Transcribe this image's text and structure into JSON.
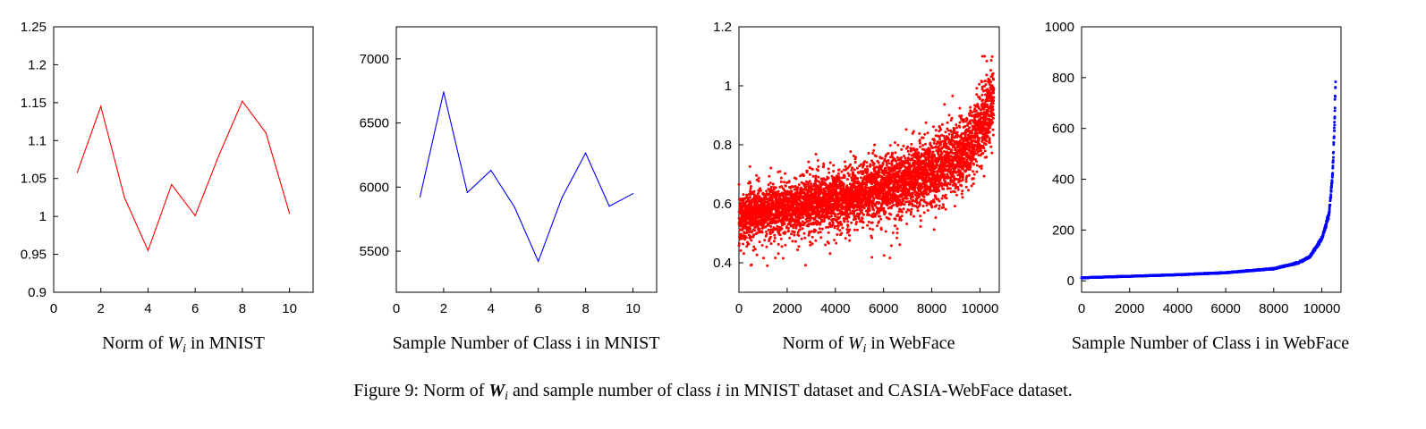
{
  "figure_caption": {
    "prefix": "Figure 9: Norm of ",
    "sym_W": "W",
    "sym_i": "i",
    "middle": " and sample number of class ",
    "sym_i2": "i",
    "suffix": " in MNIST dataset and CASIA-WebFace dataset."
  },
  "chart_data": [
    {
      "type": "line",
      "caption_prefix": "Norm of ",
      "caption_sym_W": "W",
      "caption_sym_i": "i",
      "caption_suffix": " in MNIST",
      "line_color": "#ff0000",
      "x": [
        1,
        2,
        3,
        4,
        5,
        6,
        7,
        8,
        9,
        10
      ],
      "values": [
        1.058,
        1.145,
        1.025,
        0.955,
        1.042,
        1.001,
        1.08,
        1.152,
        1.11,
        1.004
      ],
      "xlim": [
        0,
        11
      ],
      "ylim": [
        0.9,
        1.25
      ],
      "x_ticks": [
        0,
        2,
        4,
        6,
        8,
        10
      ],
      "x_tick_labels": [
        "0",
        "2",
        "4",
        "6",
        "8",
        "10"
      ],
      "y_ticks": [
        0.9,
        0.95,
        1.0,
        1.05,
        1.1,
        1.15,
        1.2,
        1.25
      ],
      "y_tick_labels": [
        "0.9",
        "0.95",
        "1",
        "1.05",
        "1.1",
        "1.15",
        "1.2",
        "1.25"
      ]
    },
    {
      "type": "line",
      "caption": "Sample Number of Class i in MNIST",
      "line_color": "#0000ff",
      "x": [
        1,
        2,
        3,
        4,
        5,
        6,
        7,
        8,
        9,
        10
      ],
      "values": [
        5923,
        6742,
        5958,
        6131,
        5842,
        5421,
        5918,
        6265,
        5851,
        5949
      ],
      "xlim": [
        0,
        11
      ],
      "ylim": [
        5180,
        7250
      ],
      "x_ticks": [
        0,
        2,
        4,
        6,
        8,
        10
      ],
      "x_tick_labels": [
        "0",
        "2",
        "4",
        "6",
        "8",
        "10"
      ],
      "y_ticks": [
        5500,
        6000,
        6500,
        7000
      ],
      "y_tick_labels": [
        "5500",
        "6000",
        "6500",
        "7000"
      ]
    },
    {
      "type": "scatter",
      "caption_prefix": "Norm of ",
      "caption_sym_W": "W",
      "caption_sym_i": "i",
      "caption_suffix": " in WebFace",
      "point_color": "#ff0000",
      "n_classes": 10575,
      "trend": [
        [
          0,
          0.56
        ],
        [
          2000,
          0.585
        ],
        [
          4000,
          0.615
        ],
        [
          6000,
          0.65
        ],
        [
          8000,
          0.71
        ],
        [
          9500,
          0.79
        ],
        [
          10575,
          0.96
        ]
      ],
      "xlim": [
        0,
        10800
      ],
      "ylim": [
        0.3,
        1.2
      ],
      "x_ticks": [
        0,
        2000,
        4000,
        6000,
        8000,
        10000
      ],
      "x_tick_labels": [
        "0",
        "2000",
        "4000",
        "6000",
        "8000",
        "10000"
      ],
      "y_ticks": [
        0.4,
        0.6,
        0.8,
        1.0,
        1.2
      ],
      "y_tick_labels": [
        "0.4",
        "0.6",
        "0.8",
        "1",
        "1.2"
      ]
    },
    {
      "type": "scatter",
      "caption": "Sample Number of Class i in WebFace",
      "point_color": "#0000ff",
      "n_classes": 10575,
      "trend": [
        [
          0,
          12
        ],
        [
          2000,
          18
        ],
        [
          4000,
          24
        ],
        [
          6000,
          32
        ],
        [
          8000,
          48
        ],
        [
          9000,
          70
        ],
        [
          9500,
          95
        ],
        [
          10000,
          165
        ],
        [
          10300,
          260
        ],
        [
          10450,
          420
        ],
        [
          10540,
          650
        ],
        [
          10575,
          800
        ]
      ],
      "xlim": [
        0,
        10800
      ],
      "ylim": [
        -45,
        1000
      ],
      "x_ticks": [
        0,
        2000,
        4000,
        6000,
        8000,
        10000
      ],
      "x_tick_labels": [
        "0",
        "2000",
        "4000",
        "6000",
        "8000",
        "10000"
      ],
      "y_ticks": [
        0,
        200,
        400,
        600,
        800,
        1000
      ],
      "y_tick_labels": [
        "0",
        "200",
        "400",
        "600",
        "800",
        "1000"
      ]
    }
  ]
}
